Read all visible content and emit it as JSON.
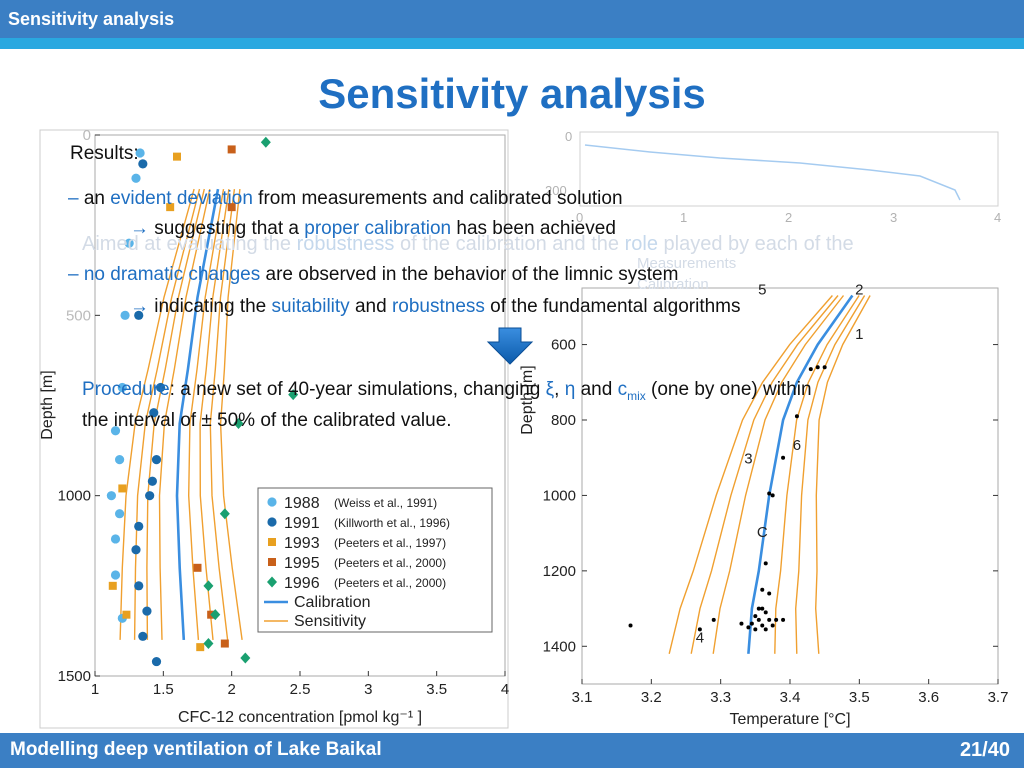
{
  "header": {
    "section_label": "Sensitivity analysis"
  },
  "slide": {
    "title": "Sensitivity analysis"
  },
  "footer": {
    "presentation_title": "Modelling deep ventilation of Lake Baikal",
    "page_number": "21/40"
  },
  "ghost_text": {
    "line1_a": "Aimed at evaluating the ",
    "line1_b": "robustness",
    "line1_c": " of the calibration and the ",
    "line1_d": "role",
    "line1_e": " played by each of the",
    "right_legend_1": "Measurements",
    "right_legend_2": "Calibration"
  },
  "results": {
    "label": "Results:",
    "b1_dash": "– ",
    "b1_a": "an ",
    "b1_hl": "evident deviation",
    "b1_b": " from measurements and calibrated solution",
    "b1_arrow": "→ ",
    "b1_sub_a": "suggesting that a ",
    "b1_sub_hl": "proper calibration",
    "b1_sub_b": " has been achieved",
    "b2_dash": "– ",
    "b2_hl": "no dramatic changes",
    "b2_a": " are observed in the behavior of the limnic system",
    "b2_arrow": "→ ",
    "b2_sub_a": "indicating the ",
    "b2_sub_hl1": "suitability",
    "b2_sub_b": " and ",
    "b2_sub_hl2": "robustness",
    "b2_sub_c": " of the fundamental algorithms"
  },
  "procedure": {
    "label": "Procedure",
    "text_a": ": a new set of 40-year simulations, changing ",
    "xi": "ξ",
    "sep": ", ",
    "eta": "η",
    "and": " and ",
    "c": "c",
    "mix": "mix",
    "text_b": " (one by one) within",
    "line2": "the interval of ± 50% of the calibrated value."
  },
  "colors": {
    "primary_blue": "#3b7fc4",
    "accent_cyan": "#29a8e0",
    "title_blue": "#1f6fc2",
    "sensitivity_orange": "#f0a030",
    "calibration_blue": "#3a8ee0"
  },
  "chart_data": [
    {
      "type": "scatter",
      "xlabel": "CFC-12 concentration [pmol kg⁻¹ ]",
      "ylabel": "Depth [m]",
      "xlim": [
        1,
        4
      ],
      "ylim": [
        0,
        1500
      ],
      "y_inverted": true,
      "xticks": [
        "1",
        "1.5",
        "2",
        "2.5",
        "3",
        "3.5",
        "4"
      ],
      "yticks": [
        "0",
        "500",
        "1000",
        "1500"
      ],
      "legend_position": "lower-right",
      "series": [
        {
          "name": "1988",
          "note": "(Weiss et al., 1991)",
          "marker": "circle",
          "color": "#5ab4e8",
          "points": [
            [
              1.33,
              50
            ],
            [
              1.3,
              120
            ],
            [
              1.25,
              300
            ],
            [
              1.22,
              500
            ],
            [
              1.2,
              700
            ],
            [
              1.15,
              820
            ],
            [
              1.18,
              900
            ],
            [
              1.12,
              1000
            ],
            [
              1.18,
              1050
            ],
            [
              1.15,
              1120
            ],
            [
              1.15,
              1220
            ],
            [
              1.2,
              1340
            ]
          ]
        },
        {
          "name": "1991",
          "note": "(Killworth et al., 1996)",
          "marker": "circle",
          "color": "#1a6aaa",
          "points": [
            [
              1.35,
              80
            ],
            [
              1.32,
              500
            ],
            [
              1.48,
              700
            ],
            [
              1.43,
              770
            ],
            [
              1.45,
              900
            ],
            [
              1.42,
              960
            ],
            [
              1.4,
              1000
            ],
            [
              1.32,
              1085
            ],
            [
              1.3,
              1150
            ],
            [
              1.32,
              1250
            ],
            [
              1.38,
              1320
            ],
            [
              1.35,
              1390
            ],
            [
              1.45,
              1460
            ]
          ]
        },
        {
          "name": "1993",
          "note": "(Peeters et al., 1997)",
          "marker": "square",
          "color": "#e8a020",
          "points": [
            [
              1.6,
              60
            ],
            [
              1.55,
              200
            ],
            [
              1.2,
              980
            ],
            [
              1.13,
              1250
            ],
            [
              1.23,
              1330
            ],
            [
              1.77,
              1420
            ]
          ]
        },
        {
          "name": "1995",
          "note": "(Peeters et al., 2000)",
          "marker": "square",
          "color": "#c8601a",
          "points": [
            [
              2.0,
              40
            ],
            [
              2.0,
              200
            ],
            [
              1.75,
              1200
            ],
            [
              1.85,
              1330
            ],
            [
              1.95,
              1410
            ]
          ]
        },
        {
          "name": "1996",
          "note": "(Peeters et al., 2000)",
          "marker": "diamond",
          "color": "#1aa070",
          "points": [
            [
              2.25,
              20
            ],
            [
              2.45,
              720
            ],
            [
              2.05,
              800
            ],
            [
              1.95,
              1050
            ],
            [
              1.83,
              1250
            ],
            [
              1.88,
              1330
            ],
            [
              1.83,
              1410
            ],
            [
              2.1,
              1450
            ]
          ]
        }
      ],
      "lines": [
        {
          "name": "Calibration",
          "color": "#3a8ee0",
          "points": [
            [
              1.9,
              150
            ],
            [
              1.75,
              450
            ],
            [
              1.68,
              650
            ],
            [
              1.62,
              800
            ],
            [
              1.6,
              1000
            ],
            [
              1.62,
              1200
            ],
            [
              1.65,
              1400
            ]
          ]
        },
        {
          "name": "Sensitivity",
          "color": "#f0a030",
          "count": 8
        }
      ]
    },
    {
      "type": "scatter",
      "xlabel": "Temperature [°C]",
      "ylabel": "Depth [m]",
      "xlim": [
        3.1,
        3.7
      ],
      "ylim": [
        450,
        1500
      ],
      "y_inverted": true,
      "xticks": [
        "3.1",
        "3.2",
        "3.3",
        "3.4",
        "3.5",
        "3.6",
        "3.7"
      ],
      "yticks": [
        "600",
        "800",
        "1000",
        "1200",
        "1400"
      ],
      "curve_labels": [
        "1",
        "5",
        "6",
        "3",
        "C",
        "4",
        "2"
      ],
      "series": [
        {
          "name": "Measurements",
          "marker": "dot",
          "color": "#000000",
          "points": [
            [
              3.45,
              660
            ],
            [
              3.44,
              660
            ],
            [
              3.43,
              665
            ],
            [
              3.41,
              790
            ],
            [
              3.39,
              900
            ],
            [
              3.37,
              995
            ],
            [
              3.375,
              1000
            ],
            [
              3.365,
              1180
            ],
            [
              3.36,
              1250
            ],
            [
              3.37,
              1260
            ],
            [
              3.355,
              1300
            ],
            [
              3.36,
              1300
            ],
            [
              3.365,
              1310
            ],
            [
              3.35,
              1320
            ],
            [
              3.355,
              1330
            ],
            [
              3.37,
              1330
            ],
            [
              3.345,
              1340
            ],
            [
              3.36,
              1345
            ],
            [
              3.375,
              1345
            ],
            [
              3.34,
              1350
            ],
            [
              3.35,
              1355
            ],
            [
              3.365,
              1355
            ],
            [
              3.38,
              1330
            ],
            [
              3.39,
              1330
            ],
            [
              3.17,
              1345
            ],
            [
              3.27,
              1355
            ],
            [
              3.29,
              1330
            ],
            [
              3.33,
              1340
            ]
          ]
        }
      ],
      "lines": [
        {
          "name": "Calibration",
          "color": "#3a8ee0",
          "points": [
            [
              3.49,
              470
            ],
            [
              3.44,
              600
            ],
            [
              3.41,
              700
            ],
            [
              3.39,
              800
            ],
            [
              3.37,
              1000
            ],
            [
              3.355,
              1200
            ],
            [
              3.345,
              1300
            ],
            [
              3.34,
              1420
            ]
          ]
        },
        {
          "name": "Sensitivity",
          "color": "#f0a030",
          "count": 6
        }
      ]
    }
  ]
}
